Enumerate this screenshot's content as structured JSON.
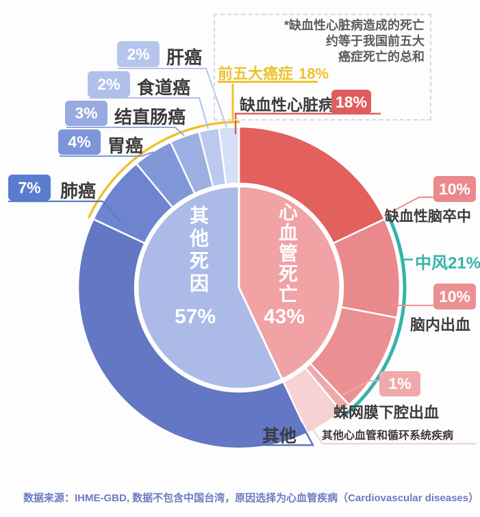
{
  "annotation": {
    "lines": [
      "*缺血性心脏病造成的死亡",
      "约等于我国前五大",
      "癌症死亡的总和"
    ]
  },
  "top_labels": {
    "top5_cancers": {
      "text": "前五大癌症",
      "pct": "18%",
      "color": "#eec22d"
    },
    "ihd": {
      "text": "缺血性心脏病",
      "pct": "18%",
      "badge_color": "#e15d5d"
    }
  },
  "center": {
    "other": {
      "title": "其他死因",
      "pct": "57%"
    },
    "cvd": {
      "title": "心血管死亡",
      "pct": "43%"
    }
  },
  "left_labels": [
    {
      "pct": "2%",
      "name": "肝癌",
      "badge_color": "#b7c5ed"
    },
    {
      "pct": "2%",
      "name": "食道癌",
      "badge_color": "#b1c0ea"
    },
    {
      "pct": "3%",
      "name": "结直肠癌",
      "badge_color": "#97aae1"
    },
    {
      "pct": "4%",
      "name": "胃癌",
      "badge_color": "#7e96d9"
    },
    {
      "pct": "7%",
      "name": "肺癌",
      "badge_color": "#5a7cce"
    }
  ],
  "right_labels": {
    "ischemic_stroke": {
      "pct": "10%",
      "name": "缺血性脑卒中",
      "badge_color": "#e9898b"
    },
    "stroke_total": {
      "text": "中风21%",
      "color": "#35b3a9"
    },
    "intracerebral_hemorrhage": {
      "pct": "10%",
      "name": "脑内出血",
      "badge_color": "#eb9092"
    },
    "subarachnoid_hemorrhage": {
      "pct": "1%",
      "name": "蛛网膜下腔出血",
      "badge_color": "#efa9ad"
    },
    "other_cardiovascular": {
      "name": "其他心血管和循环系统疾病"
    },
    "other_bottom": {
      "name": "其他"
    }
  },
  "source": "数据来源：IHME-GBD, 数据不包含中国台湾，原因选择为心血管疾病（Cardiovascular diseases）",
  "chart_data": {
    "type": "pie",
    "subtype": "two-level-donut-sunburst",
    "units": "percent of deaths",
    "start_angle_deg": 0,
    "direction": "clockwise",
    "inner_ring": [
      {
        "id": "cardiovascular-death",
        "label": "心血管死亡",
        "value": 43,
        "color": "#f0a2a4"
      },
      {
        "id": "other-causes-of-death",
        "label": "其他死因",
        "value": 57,
        "color": "#abbae7"
      }
    ],
    "outer_ring": [
      {
        "id": "ischemic-heart-disease",
        "label": "缺血性心脏病",
        "value": 18,
        "color": "#e2605e"
      },
      {
        "id": "ischemic-stroke",
        "label": "缺血性脑卒中",
        "value": 10,
        "color": "#e9898b"
      },
      {
        "id": "intracerebral-hemorrhage",
        "label": "脑内出血",
        "value": 10,
        "color": "#eb9092"
      },
      {
        "id": "subarachnoid-hemorrhage",
        "label": "蛛网膜下腔出血",
        "value": 1,
        "color": "#efa9ad"
      },
      {
        "id": "other-cardiovascular-circulatory",
        "label": "其他心血管和循环系统疾病",
        "value": 4,
        "color": "#f6d2d5"
      },
      {
        "id": "other-causes",
        "label": "其他",
        "value": 39,
        "color": "#6377c4"
      },
      {
        "id": "lung-cancer",
        "label": "肺癌",
        "value": 7,
        "color": "#6e84ce"
      },
      {
        "id": "stomach-cancer",
        "label": "胃癌",
        "value": 4,
        "color": "#8098d8"
      },
      {
        "id": "colorectal-cancer",
        "label": "结直肠癌",
        "value": 3,
        "color": "#9dafe2"
      },
      {
        "id": "esophageal-cancer",
        "label": "食道癌",
        "value": 2,
        "color": "#bcc9ee"
      },
      {
        "id": "liver-cancer",
        "label": "肝癌",
        "value": 2,
        "color": "#d7dff6"
      }
    ],
    "accent_arcs": [
      {
        "id": "top5-cancers",
        "label": "前五大癌症",
        "value": 18,
        "color": "#eec22d",
        "from_pct": 82,
        "to_pct": 100
      },
      {
        "id": "stroke-total",
        "label": "中风",
        "value": 21,
        "color": "#35b3a9",
        "from_pct": 18,
        "to_pct": 39
      }
    ]
  }
}
